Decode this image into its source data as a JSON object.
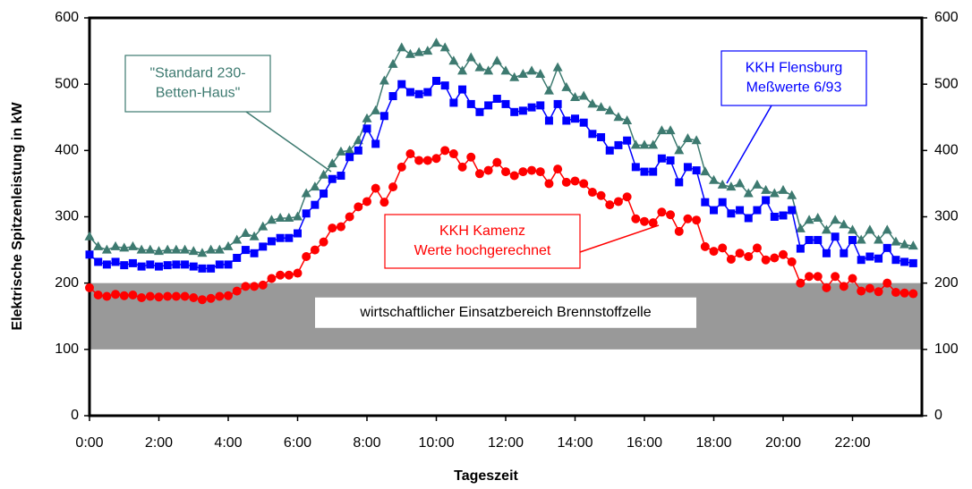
{
  "chart_data": {
    "type": "line",
    "xlabel": "Tageszeit",
    "ylabel": "Elektrische Spitzenleistung in kW",
    "xlim": [
      0,
      24
    ],
    "xticks": [
      {
        "value": 0,
        "label": "0:00"
      },
      {
        "value": 2,
        "label": "2:00"
      },
      {
        "value": 4,
        "label": "4:00"
      },
      {
        "value": 6,
        "label": "6:00"
      },
      {
        "value": 8,
        "label": "8:00"
      },
      {
        "value": 10,
        "label": "10:00"
      },
      {
        "value": 12,
        "label": "12:00"
      },
      {
        "value": 14,
        "label": "14:00"
      },
      {
        "value": 16,
        "label": "16:00"
      },
      {
        "value": 18,
        "label": "18:00"
      },
      {
        "value": 20,
        "label": "20:00"
      },
      {
        "value": 22,
        "label": "22:00"
      }
    ],
    "ylim": [
      0,
      600
    ],
    "yticks": [
      0,
      100,
      200,
      300,
      400,
      500,
      600
    ],
    "y2lim": [
      0,
      600
    ],
    "y2ticks": [
      0,
      100,
      200,
      300,
      400,
      500,
      600
    ],
    "band": {
      "from": 100,
      "to": 200,
      "color": "#999999",
      "label": "wirtschaftlicher Einsatzbereich Brennstoffzelle"
    },
    "x": [
      0,
      0.25,
      0.5,
      0.75,
      1,
      1.25,
      1.5,
      1.75,
      2,
      2.25,
      2.5,
      2.75,
      3,
      3.25,
      3.5,
      3.75,
      4,
      4.25,
      4.5,
      4.75,
      5,
      5.25,
      5.5,
      5.75,
      6,
      6.25,
      6.5,
      6.75,
      7,
      7.25,
      7.5,
      7.75,
      8,
      8.25,
      8.5,
      8.75,
      9,
      9.25,
      9.5,
      9.75,
      10,
      10.25,
      10.5,
      10.75,
      11,
      11.25,
      11.5,
      11.75,
      12,
      12.25,
      12.5,
      12.75,
      13,
      13.25,
      13.5,
      13.75,
      14,
      14.25,
      14.5,
      14.75,
      15,
      15.25,
      15.5,
      15.75,
      16,
      16.25,
      16.5,
      16.75,
      17,
      17.25,
      17.5,
      17.75,
      18,
      18.25,
      18.5,
      18.75,
      19,
      19.25,
      19.5,
      19.75,
      20,
      20.25,
      20.5,
      20.75,
      21,
      21.25,
      21.5,
      21.75,
      22,
      22.25,
      22.5,
      22.75,
      23,
      23.25,
      23.5,
      23.75
    ],
    "series": [
      {
        "color": "#3d7a70",
        "marker": "triangle",
        "values": [
          270,
          255,
          250,
          255,
          253,
          255,
          250,
          250,
          248,
          250,
          250,
          250,
          248,
          245,
          250,
          250,
          255,
          265,
          275,
          270,
          285,
          295,
          298,
          298,
          300,
          335,
          345,
          363,
          380,
          398,
          400,
          415,
          448,
          460,
          505,
          530,
          555,
          545,
          548,
          550,
          562,
          555,
          535,
          520,
          540,
          525,
          520,
          535,
          520,
          510,
          515,
          520,
          515,
          490,
          525,
          495,
          480,
          482,
          470,
          465,
          460,
          450,
          445,
          408,
          408,
          408,
          430,
          430,
          400,
          418,
          415,
          368,
          355,
          348,
          345,
          350,
          335,
          348,
          340,
          335,
          340,
          332,
          282,
          295,
          298,
          280,
          295,
          288,
          280,
          265,
          280,
          265,
          280,
          262,
          258,
          256
        ]
      },
      {
        "color": "#0000ff",
        "marker": "square",
        "values": [
          243,
          232,
          228,
          232,
          227,
          230,
          225,
          228,
          225,
          227,
          228,
          228,
          225,
          222,
          222,
          228,
          228,
          238,
          250,
          245,
          255,
          263,
          268,
          268,
          275,
          305,
          318,
          335,
          357,
          362,
          390,
          400,
          433,
          410,
          452,
          482,
          500,
          488,
          485,
          488,
          505,
          498,
          472,
          492,
          470,
          458,
          468,
          478,
          470,
          458,
          460,
          465,
          468,
          445,
          470,
          445,
          448,
          442,
          425,
          420,
          400,
          408,
          415,
          375,
          368,
          368,
          388,
          385,
          352,
          375,
          370,
          322,
          310,
          322,
          305,
          310,
          298,
          310,
          325,
          300,
          302,
          310,
          252,
          265,
          265,
          245,
          270,
          245,
          265,
          235,
          240,
          237,
          253,
          235,
          232,
          230
        ]
      },
      {
        "color": "#ff0000",
        "marker": "circle",
        "values": [
          193,
          182,
          180,
          183,
          181,
          182,
          178,
          180,
          179,
          180,
          180,
          180,
          178,
          175,
          177,
          180,
          181,
          188,
          195,
          195,
          197,
          207,
          212,
          212,
          215,
          240,
          250,
          262,
          283,
          285,
          300,
          315,
          323,
          343,
          322,
          345,
          375,
          395,
          385,
          385,
          388,
          400,
          395,
          375,
          390,
          365,
          370,
          382,
          368,
          362,
          368,
          370,
          368,
          350,
          372,
          352,
          354,
          350,
          337,
          332,
          318,
          323,
          330,
          297,
          293,
          291,
          307,
          303,
          278,
          297,
          295,
          255,
          248,
          253,
          236,
          245,
          240,
          253,
          235,
          238,
          243,
          232,
          200,
          210,
          210,
          193,
          210,
          195,
          207,
          188,
          192,
          187,
          200,
          186,
          185,
          184
        ]
      }
    ],
    "annotations": [
      {
        "text": [
          "\"Standard 230-",
          "Betten-Haus\""
        ],
        "color": "#3d7a70"
      },
      {
        "text": [
          "KKH Flensburg",
          "Meßwerte 6/93"
        ],
        "color": "#0000ff"
      },
      {
        "text": [
          "KKH Kamenz",
          "Werte hochgerechnet"
        ],
        "color": "#ff0000"
      }
    ]
  }
}
